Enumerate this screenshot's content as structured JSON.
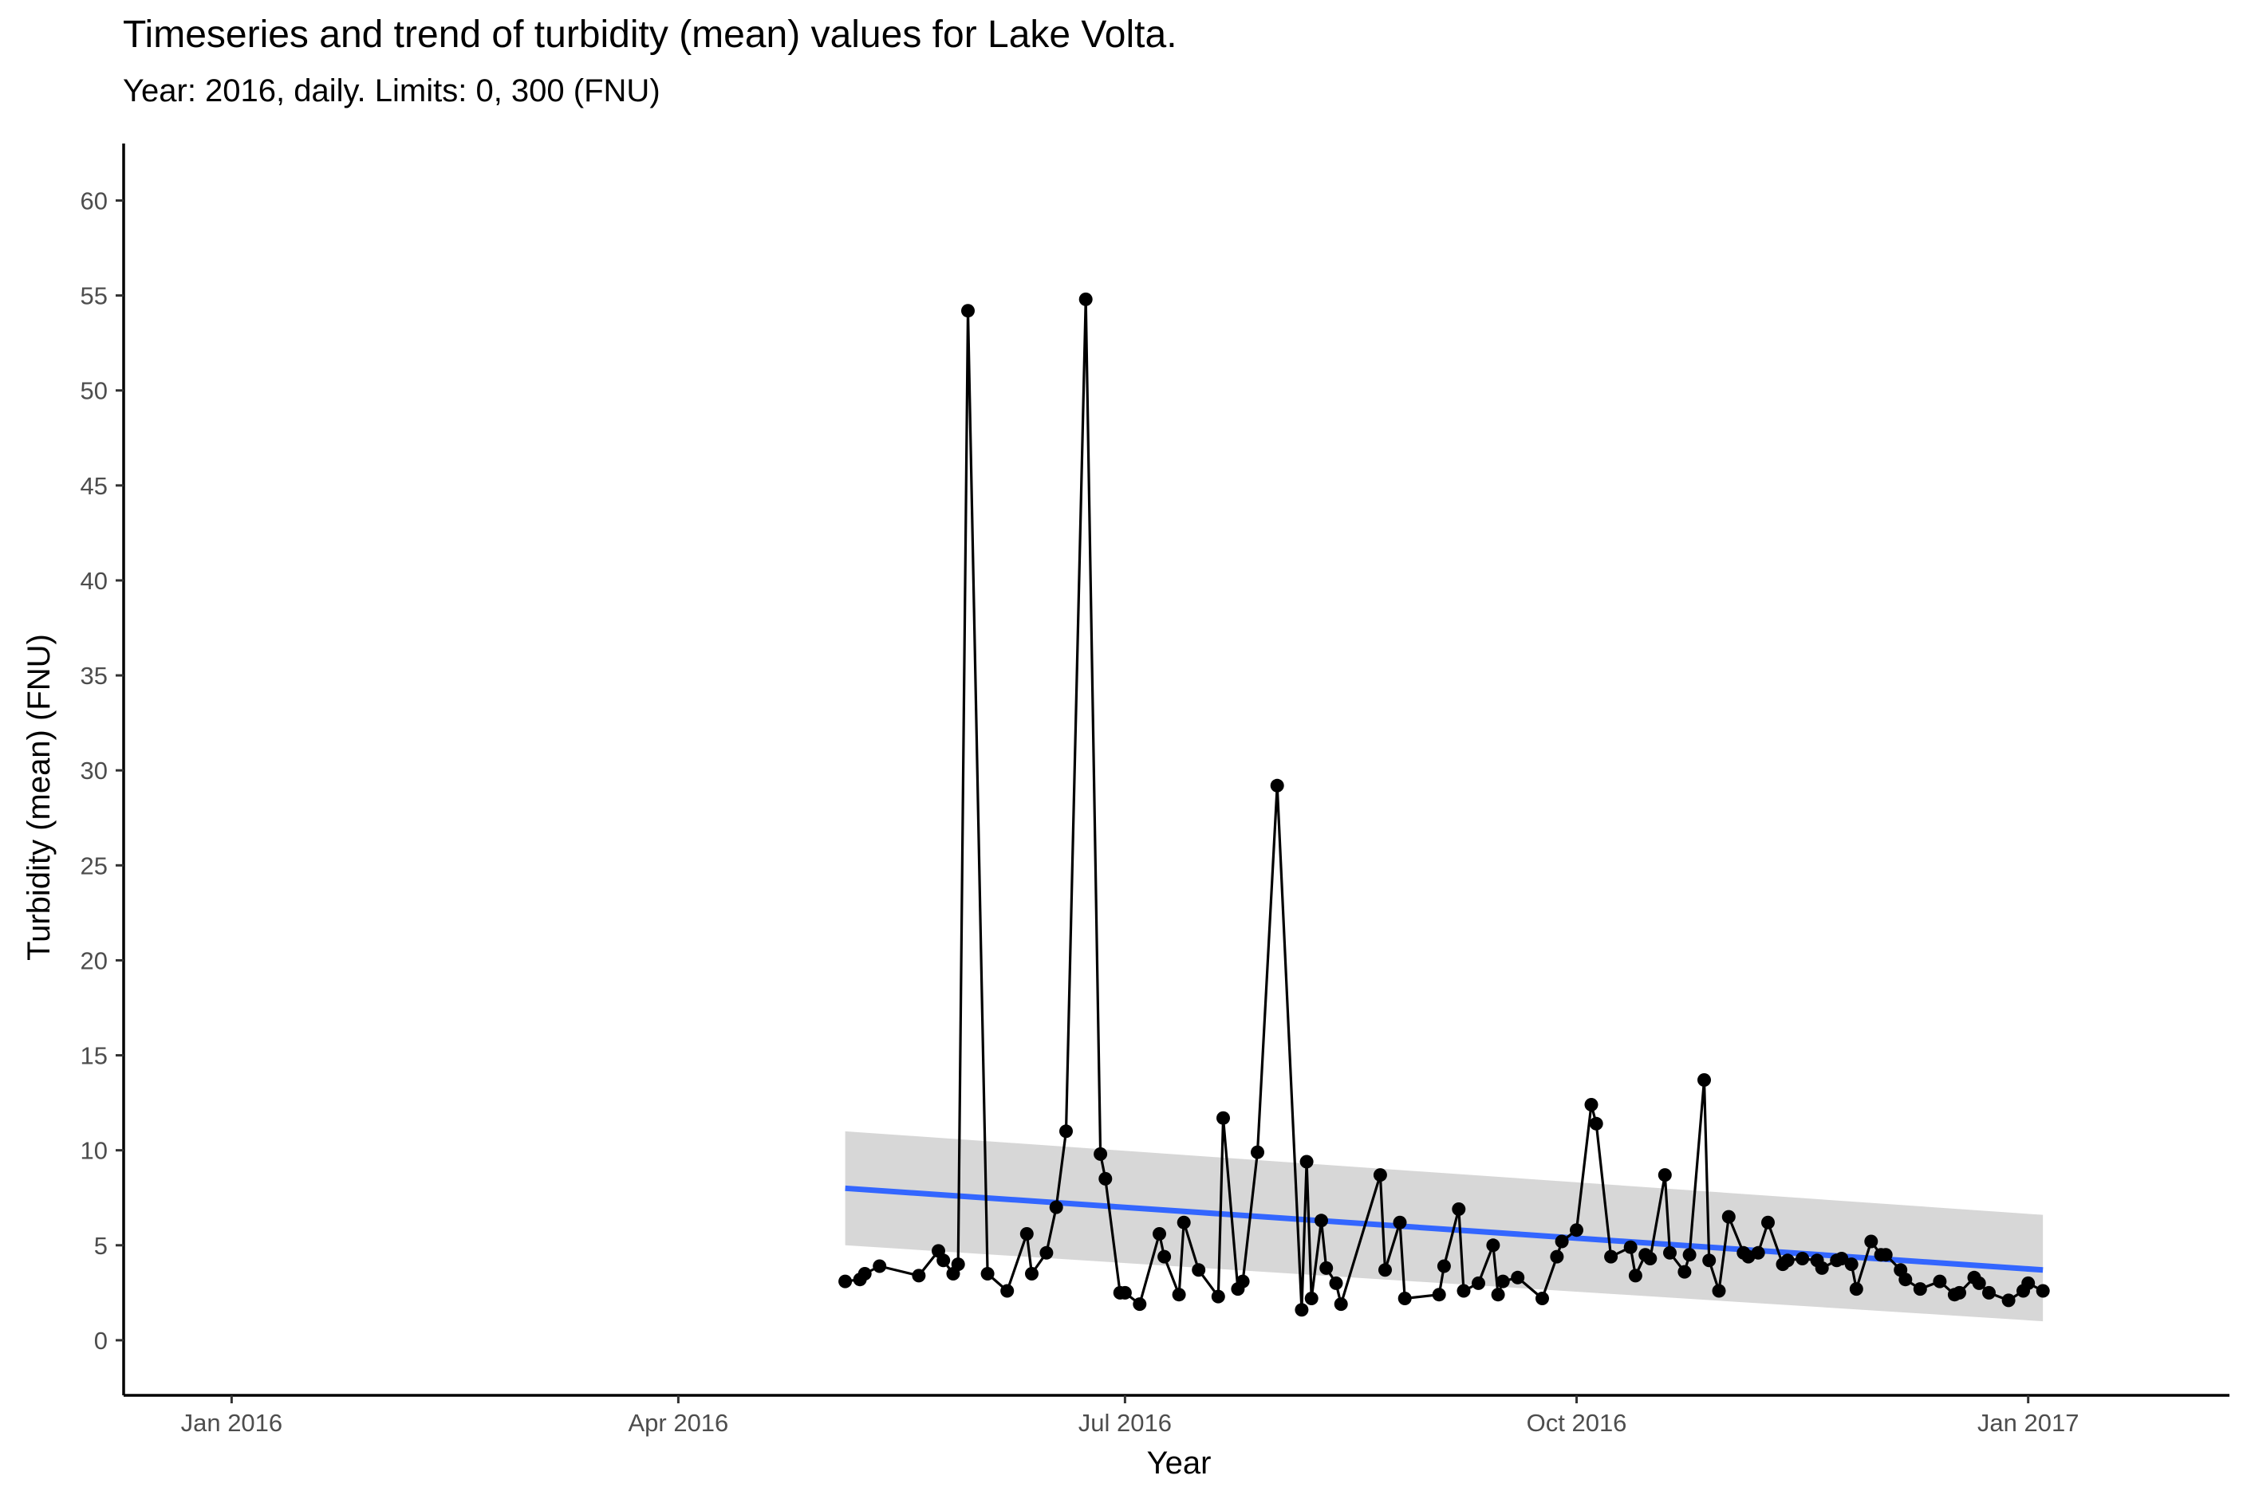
{
  "chart_data": {
    "type": "line",
    "title": "Timeseries and trend of turbidity (mean) values for Lake Volta.",
    "subtitle": "Year: 2016, daily. Limits: 0, 300 (FNU)",
    "xlabel": "Year",
    "ylabel": "Turbidity (mean) (FNU)",
    "x_ticks": [
      "Jan 2016",
      "Apr 2016",
      "Jul 2016",
      "Oct 2016",
      "Jan 2017"
    ],
    "y_ticks": [
      0,
      5,
      10,
      15,
      20,
      25,
      30,
      35,
      40,
      45,
      50,
      55,
      60
    ],
    "xlim": [
      "2015-12-10",
      "2017-02-11"
    ],
    "ylim": [
      -2.9,
      63
    ],
    "grid": false,
    "series": [
      {
        "x": [
          "2016-05-05",
          "2016-05-08",
          "2016-05-09",
          "2016-05-12",
          "2016-05-20",
          "2016-05-24",
          "2016-05-25",
          "2016-05-27",
          "2016-05-28",
          "2016-05-30",
          "2016-06-03",
          "2016-06-07",
          "2016-06-11",
          "2016-06-12",
          "2016-06-15",
          "2016-06-17",
          "2016-06-19",
          "2016-06-23",
          "2016-06-26",
          "2016-06-27",
          "2016-06-30",
          "2016-07-01",
          "2016-07-04",
          "2016-07-08",
          "2016-07-09",
          "2016-07-12",
          "2016-07-13",
          "2016-07-16",
          "2016-07-20",
          "2016-07-21",
          "2016-07-24",
          "2016-07-25",
          "2016-07-28",
          "2016-08-01",
          "2016-08-06",
          "2016-08-07",
          "2016-08-08",
          "2016-08-10",
          "2016-08-11",
          "2016-08-13",
          "2016-08-14",
          "2016-08-22",
          "2016-08-23",
          "2016-08-26",
          "2016-08-27",
          "2016-09-03",
          "2016-09-04",
          "2016-09-07",
          "2016-09-08",
          "2016-09-11",
          "2016-09-14",
          "2016-09-15",
          "2016-09-16",
          "2016-09-19",
          "2016-09-24",
          "2016-09-27",
          "2016-09-28",
          "2016-10-01",
          "2016-10-04",
          "2016-10-05",
          "2016-10-08",
          "2016-10-12",
          "2016-10-13",
          "2016-10-15",
          "2016-10-16",
          "2016-10-19",
          "2016-10-20",
          "2016-10-23",
          "2016-10-24",
          "2016-10-27",
          "2016-10-28",
          "2016-10-30",
          "2016-11-01",
          "2016-11-04",
          "2016-11-05",
          "2016-11-07",
          "2016-11-09",
          "2016-11-12",
          "2016-11-13",
          "2016-11-16",
          "2016-11-19",
          "2016-11-20",
          "2016-11-23",
          "2016-11-24",
          "2016-11-26",
          "2016-11-27",
          "2016-11-30",
          "2016-12-02",
          "2016-12-03",
          "2016-12-06",
          "2016-12-07",
          "2016-12-10",
          "2016-12-14",
          "2016-12-17",
          "2016-12-18",
          "2016-12-21",
          "2016-12-22",
          "2016-12-24",
          "2016-12-28",
          "2016-12-31",
          "2017-01-01",
          "2017-01-04"
        ],
        "values": [
          3.1,
          3.2,
          3.5,
          3.9,
          3.4,
          4.7,
          4.2,
          3.5,
          4.0,
          54.2,
          3.5,
          2.6,
          5.6,
          3.5,
          4.6,
          7.0,
          11.0,
          54.8,
          9.8,
          8.5,
          2.5,
          2.5,
          1.9,
          5.6,
          4.4,
          2.4,
          6.2,
          3.7,
          2.3,
          11.7,
          2.7,
          3.1,
          9.9,
          29.2,
          1.6,
          9.4,
          2.2,
          6.3,
          3.8,
          3.0,
          1.9,
          8.7,
          3.7,
          6.2,
          2.2,
          2.4,
          3.9,
          6.9,
          2.6,
          3.0,
          5.0,
          2.4,
          3.1,
          3.3,
          2.2,
          4.4,
          5.2,
          5.8,
          12.4,
          11.4,
          4.4,
          4.9,
          3.4,
          4.5,
          4.3,
          8.7,
          4.6,
          3.6,
          4.5,
          13.7,
          4.2,
          2.6,
          6.5,
          4.6,
          4.4,
          4.6,
          6.2,
          4.0,
          4.2,
          4.3,
          4.2,
          3.8,
          4.2,
          4.3,
          4.0,
          2.7,
          5.2,
          4.5,
          4.5,
          3.7,
          3.2,
          2.7,
          3.1,
          2.4,
          2.5,
          3.3,
          3.0,
          2.5,
          2.1,
          2.6,
          3.0,
          2.6
        ]
      }
    ],
    "trend": {
      "type": "linear",
      "x": [
        "2016-05-05",
        "2017-01-04"
      ],
      "y": [
        8.0,
        3.7
      ],
      "ci_lower": [
        5.0,
        1.0
      ],
      "ci_upper": [
        11.0,
        6.6
      ]
    },
    "colors": {
      "line": "#000000",
      "point": "#000000",
      "trend": "#3366ff",
      "band": "#d3d3d3"
    }
  }
}
